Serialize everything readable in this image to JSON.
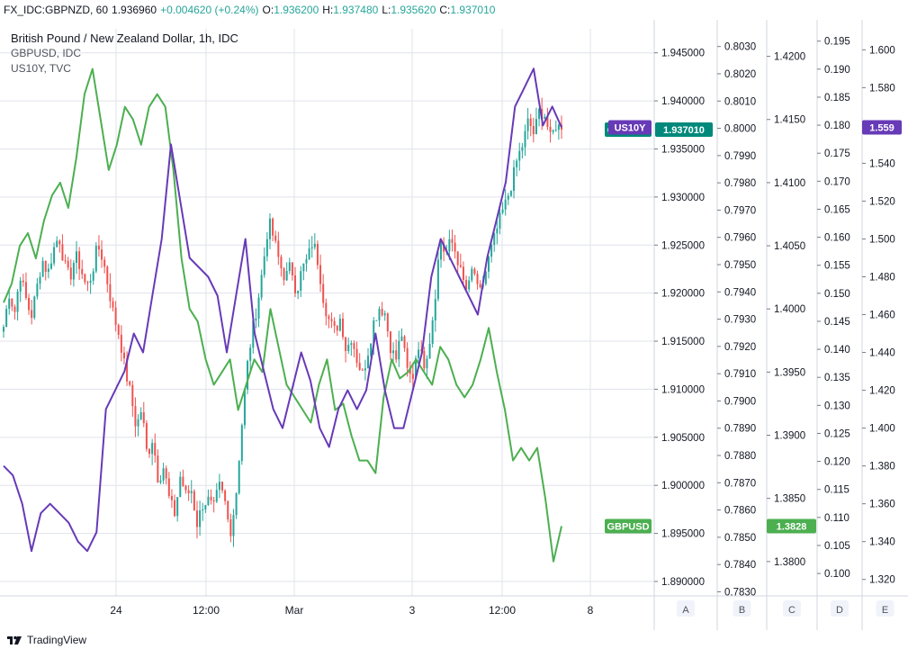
{
  "header": {
    "symbol": "FX_IDC:GBPNZD, 60",
    "last": "1.936960",
    "change": "+0.004620 (+0.24%)",
    "open_label": "O:",
    "open": "1.936200",
    "high_label": "H:",
    "high": "1.937480",
    "low_label": "L:",
    "low": "1.935620",
    "close_label": "C:",
    "close": "1.937010"
  },
  "legend": {
    "title": "British Pound / New Zealand Dollar, 1h, IDC",
    "overlay1": "GBPUSD, IDC",
    "overlay2": "US10Y, TVC"
  },
  "footer": {
    "brand": "TradingView"
  },
  "colors": {
    "up": "#26a69a",
    "down": "#ef5350",
    "gbpusd": "#4caf50",
    "us10y": "#673ab7",
    "grid": "#e0e3eb"
  },
  "chart_data": {
    "type": "line",
    "title": "British Pound / New Zealand Dollar, 1h, IDC",
    "x_ticks": [
      "24",
      "12:00",
      "Mar",
      "3",
      "12:00",
      "8"
    ],
    "axes": [
      {
        "id": "A",
        "min": 1.8885,
        "max": 1.9475,
        "ticks": [
          "1.890000",
          "1.895000",
          "1.900000",
          "1.905000",
          "1.910000",
          "1.915000",
          "1.920000",
          "1.925000",
          "1.930000",
          "1.935000",
          "1.940000",
          "1.945000"
        ]
      },
      {
        "id": "B",
        "min": 0.78285,
        "max": 0.80365,
        "ticks": [
          "0.7830",
          "0.7840",
          "0.7850",
          "0.7860",
          "0.7870",
          "0.7880",
          "0.7890",
          "0.7900",
          "0.7910",
          "0.7920",
          "0.7930",
          "0.7940",
          "0.7950",
          "0.7960",
          "0.7970",
          "0.7980",
          "0.7990",
          "0.8000",
          "0.8010",
          "0.8020",
          "0.8030"
        ]
      },
      {
        "id": "C",
        "min": 1.37728,
        "max": 1.42218,
        "ticks": [
          "1.3800",
          "1.3850",
          "1.3900",
          "1.3950",
          "1.4000",
          "1.4050",
          "1.4100",
          "1.4150",
          "1.4200"
        ]
      },
      {
        "id": "D",
        "min": 0.096,
        "max": 0.1972,
        "ticks": [
          "0.100",
          "0.105",
          "0.110",
          "0.115",
          "0.120",
          "0.125",
          "0.130",
          "0.135",
          "0.140",
          "0.145",
          "0.150",
          "0.155",
          "0.160",
          "0.165",
          "0.170",
          "0.175",
          "0.180",
          "0.185",
          "0.190",
          "0.195"
        ]
      },
      {
        "id": "E",
        "min": 1.3113,
        "max": 1.6111,
        "ticks": [
          "1.320",
          "1.340",
          "1.360",
          "1.380",
          "1.400",
          "1.420",
          "1.440",
          "1.460",
          "1.480",
          "1.500",
          "1.520",
          "1.540",
          "1.560",
          "1.580",
          "1.600"
        ]
      }
    ],
    "series": [
      {
        "name": "GBPNZD",
        "type": "candlestick",
        "axis": "A",
        "path": [
          1.9165,
          1.92,
          1.918,
          1.922,
          1.9195,
          1.9175,
          1.9205,
          1.9235,
          1.922,
          1.9245,
          1.926,
          1.923,
          1.9215,
          1.924,
          1.9225,
          1.9205,
          1.922,
          1.925,
          1.9235,
          1.9205,
          1.9175,
          1.9155,
          1.912,
          1.9095,
          1.906,
          1.908,
          1.903,
          1.905,
          1.9005,
          1.902,
          1.8985,
          1.897,
          1.901,
          1.899,
          1.8995,
          1.896,
          1.898,
          1.8985,
          1.8975,
          1.9,
          1.8985,
          1.895,
          1.8985,
          1.9055,
          1.912,
          1.916,
          1.919,
          1.923,
          1.9275,
          1.9255,
          1.923,
          1.9215,
          1.923,
          1.92,
          1.9225,
          1.9235,
          1.9255,
          1.923,
          1.919,
          1.917,
          1.916,
          1.9175,
          1.914,
          1.9155,
          1.913,
          1.9115,
          1.914,
          1.917,
          1.9185,
          1.918,
          1.9145,
          1.913,
          1.916,
          1.912,
          1.911,
          1.915,
          1.9125,
          1.9145,
          1.919,
          1.9255,
          1.924,
          1.9255,
          1.924,
          1.9215,
          1.92,
          1.923,
          1.9195,
          1.9215,
          1.924,
          1.926,
          1.928,
          1.9295,
          1.9315,
          1.934,
          1.9355,
          1.938,
          1.9365,
          1.939,
          1.9385,
          1.936,
          1.9375,
          1.937
        ],
        "last": 1.93701
      },
      {
        "name": "GBPUSD",
        "type": "line",
        "axis": "C",
        "values": [
          1.4005,
          1.402,
          1.405,
          1.406,
          1.404,
          1.407,
          1.409,
          1.41,
          1.408,
          1.412,
          1.417,
          1.419,
          1.415,
          1.411,
          1.413,
          1.416,
          1.415,
          1.413,
          1.416,
          1.417,
          1.416,
          1.411,
          1.404,
          1.4,
          1.399,
          1.396,
          1.394,
          1.395,
          1.396,
          1.392,
          1.394,
          1.396,
          1.395,
          1.4,
          1.397,
          1.394,
          1.393,
          1.392,
          1.391,
          1.394,
          1.396,
          1.392,
          1.3925,
          1.39,
          1.388,
          1.388,
          1.387,
          1.393,
          1.396,
          1.3945,
          1.395,
          1.396,
          1.395,
          1.394,
          1.397,
          1.396,
          1.394,
          1.393,
          1.394,
          1.396,
          1.3985,
          1.395,
          1.392,
          1.388,
          1.389,
          1.388,
          1.389,
          1.385,
          1.38,
          1.3828
        ],
        "last": 1.3828
      },
      {
        "name": "US10Y",
        "type": "line",
        "axis": "E",
        "values": [
          1.38,
          1.375,
          1.36,
          1.335,
          1.355,
          1.36,
          1.355,
          1.35,
          1.34,
          1.335,
          1.345,
          1.41,
          1.42,
          1.43,
          1.45,
          1.44,
          1.47,
          1.5,
          1.55,
          1.52,
          1.49,
          1.485,
          1.48,
          1.47,
          1.44,
          1.47,
          1.5,
          1.45,
          1.43,
          1.41,
          1.4,
          1.42,
          1.44,
          1.425,
          1.4,
          1.39,
          1.41,
          1.42,
          1.41,
          1.42,
          1.45,
          1.42,
          1.4,
          1.4,
          1.42,
          1.44,
          1.48,
          1.5,
          1.49,
          1.48,
          1.47,
          1.46,
          1.49,
          1.51,
          1.53,
          1.57,
          1.58,
          1.59,
          1.56,
          1.57,
          1.559
        ],
        "last": 1.559
      }
    ]
  }
}
